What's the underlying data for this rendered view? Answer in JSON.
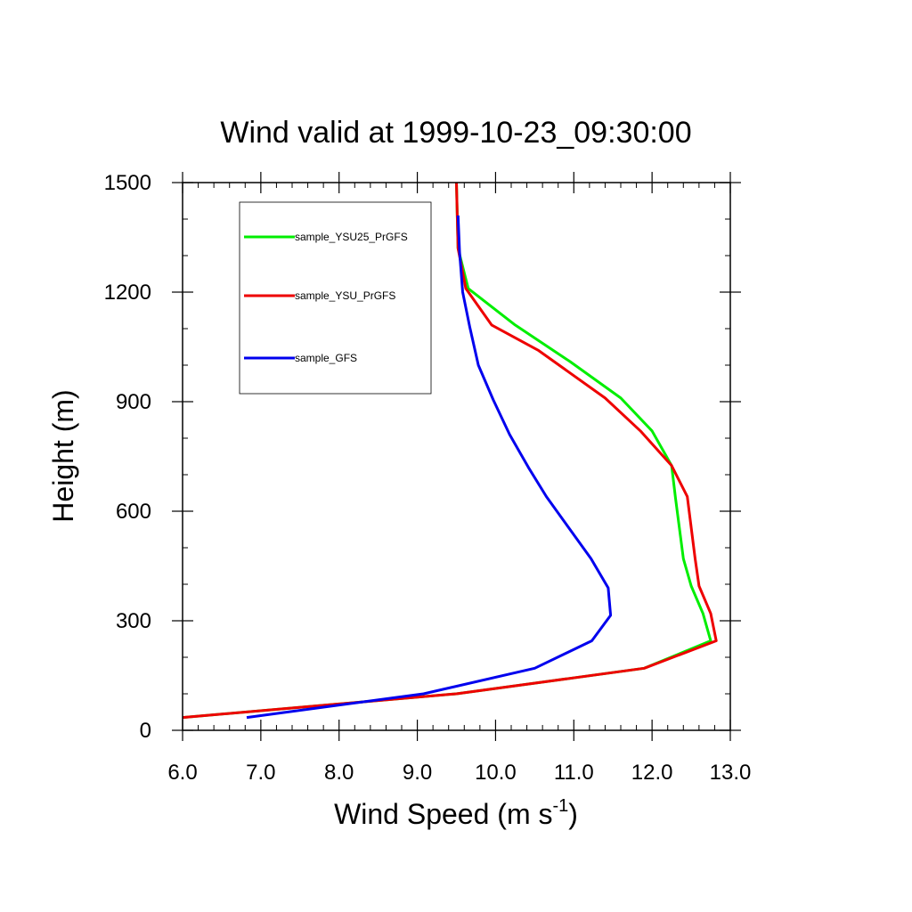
{
  "chart_data": {
    "type": "line",
    "title": "Wind valid at 1999-10-23_09:30:00",
    "xlabel": "Wind Speed (m s",
    "xlabel_sup": "-1",
    "xlabel_end": ")",
    "ylabel": "Height (m)",
    "xlim": [
      6.0,
      13.0
    ],
    "ylim": [
      0,
      1500
    ],
    "xticks": [
      6.0,
      7.0,
      8.0,
      9.0,
      10.0,
      11.0,
      12.0,
      13.0
    ],
    "xtick_labels": [
      "6.0",
      "7.0",
      "8.0",
      "9.0",
      "10.0",
      "11.0",
      "12.0",
      "13.0"
    ],
    "yticks": [
      0,
      300,
      600,
      900,
      1200,
      1500
    ],
    "ytick_labels": [
      "0",
      "300",
      "600",
      "900",
      "1200",
      "1500"
    ],
    "grid": false,
    "legend_position": "top-left",
    "series": [
      {
        "name": "sample_YSU25_PrGFS",
        "color": "#00ee00",
        "x": [
          6.0,
          9.5,
          11.9,
          12.75,
          12.65,
          12.5,
          12.4,
          12.3,
          12.25,
          12.0,
          11.6,
          10.95,
          10.25,
          9.65,
          9.52,
          9.51,
          9.5
        ],
        "y": [
          35,
          100,
          170,
          245,
          320,
          395,
          470,
          635,
          725,
          820,
          910,
          1010,
          1110,
          1210,
          1320,
          1410,
          1500
        ]
      },
      {
        "name": "sample_YSU_PrGFS",
        "color": "#ee0000",
        "x": [
          6.0,
          9.5,
          11.9,
          12.82,
          12.75,
          12.6,
          12.55,
          12.45,
          12.25,
          11.85,
          11.4,
          10.55,
          9.95,
          9.62,
          9.52,
          9.51,
          9.5
        ],
        "y": [
          35,
          100,
          170,
          245,
          320,
          395,
          470,
          640,
          725,
          820,
          910,
          1040,
          1110,
          1210,
          1320,
          1410,
          1500
        ]
      },
      {
        "name": "sample_GFS",
        "color": "#0000ee",
        "x": [
          6.82,
          9.08,
          10.5,
          11.23,
          11.47,
          11.44,
          11.22,
          10.65,
          10.42,
          10.18,
          9.97,
          9.78,
          9.67,
          9.58,
          9.54,
          9.52
        ],
        "y": [
          35,
          100,
          170,
          245,
          315,
          390,
          470,
          640,
          720,
          810,
          905,
          1000,
          1105,
          1200,
          1310,
          1410
        ]
      }
    ]
  }
}
